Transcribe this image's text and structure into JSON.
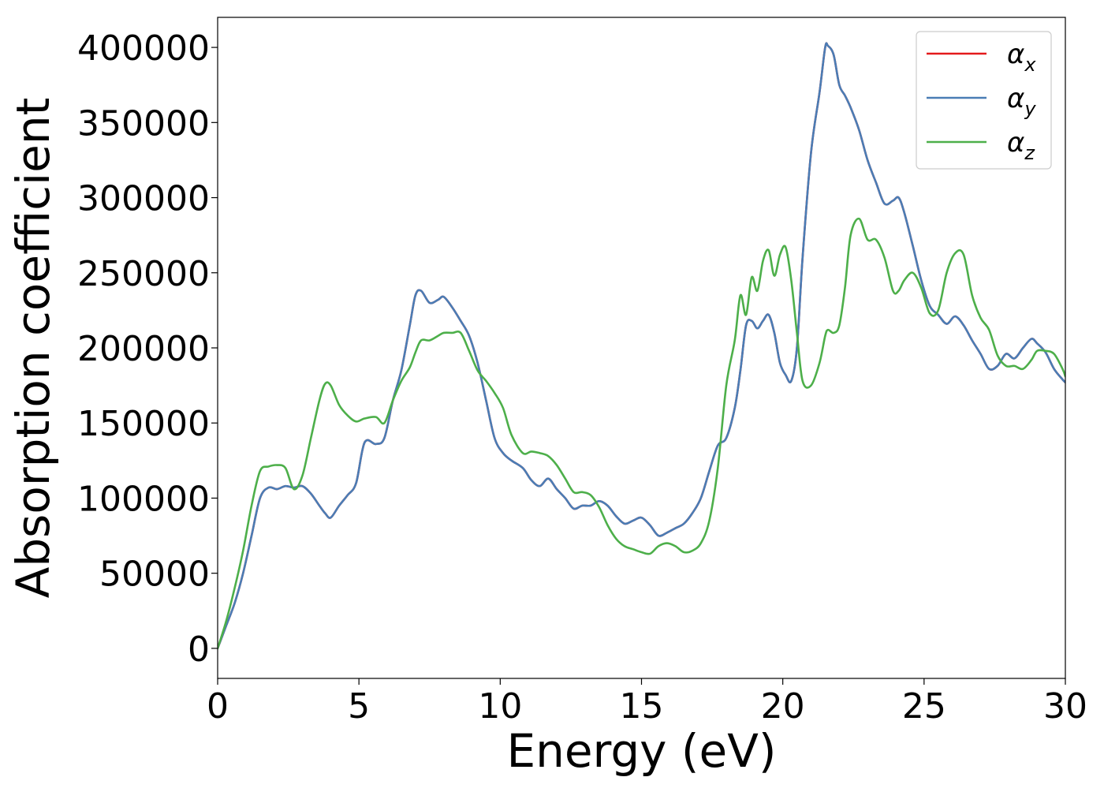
{
  "chart_data": {
    "type": "line",
    "title": "",
    "xlabel": "Energy (eV)",
    "ylabel": "Absorption coefficient",
    "xlim": [
      0,
      30
    ],
    "ylim": [
      -20000,
      420000
    ],
    "xticks": [
      0,
      5,
      10,
      15,
      20,
      25,
      30
    ],
    "yticks": [
      0,
      50000,
      100000,
      150000,
      200000,
      250000,
      300000,
      350000,
      400000
    ],
    "grid": false,
    "legend_position": "top-right",
    "series": [
      {
        "name": "αx",
        "name_base": "α",
        "name_sub": "x",
        "color": "#e41a1c",
        "x": [
          0,
          0.3,
          0.6,
          0.9,
          1.2,
          1.5,
          1.8,
          2.1,
          2.4,
          2.7,
          3.0,
          3.3,
          3.6,
          3.8,
          4.0,
          4.3,
          4.6,
          4.9,
          5.2,
          5.6,
          5.9,
          6.2,
          6.5,
          6.8,
          7.0,
          7.2,
          7.5,
          7.8,
          8.0,
          8.3,
          8.6,
          8.9,
          9.2,
          9.5,
          9.8,
          10.1,
          10.4,
          10.8,
          11.1,
          11.4,
          11.7,
          12.0,
          12.3,
          12.6,
          12.9,
          13.2,
          13.5,
          13.8,
          14.1,
          14.4,
          14.7,
          15.0,
          15.3,
          15.6,
          15.9,
          16.2,
          16.5,
          16.8,
          17.1,
          17.4,
          17.7,
          18.0,
          18.3,
          18.5,
          18.7,
          18.9,
          19.1,
          19.3,
          19.5,
          19.7,
          19.9,
          20.1,
          20.3,
          20.5,
          20.7,
          21.0,
          21.3,
          21.5,
          21.6,
          21.8,
          22.0,
          22.2,
          22.4,
          22.7,
          23.0,
          23.3,
          23.6,
          23.9,
          24.1,
          24.3,
          24.6,
          24.9,
          25.2,
          25.5,
          25.8,
          26.1,
          26.4,
          26.7,
          27.0,
          27.3,
          27.6,
          27.9,
          28.2,
          28.5,
          28.8,
          29.0,
          29.3,
          29.6,
          29.9,
          30.0
        ],
        "y": [
          0,
          15000,
          30000,
          50000,
          75000,
          100000,
          107000,
          106000,
          108000,
          107000,
          108000,
          103000,
          95000,
          90000,
          87000,
          95000,
          102000,
          110000,
          137000,
          136000,
          140000,
          165000,
          185000,
          215000,
          235000,
          238000,
          230000,
          232000,
          234000,
          227000,
          218000,
          208000,
          190000,
          165000,
          140000,
          130000,
          125000,
          120000,
          112000,
          108000,
          113000,
          106000,
          100000,
          93000,
          95000,
          95000,
          98000,
          95000,
          88000,
          83000,
          85000,
          87000,
          82000,
          75000,
          77000,
          80000,
          83000,
          90000,
          100000,
          118000,
          135000,
          140000,
          160000,
          185000,
          215000,
          218000,
          213000,
          218000,
          222000,
          210000,
          190000,
          182000,
          178000,
          200000,
          260000,
          330000,
          370000,
          400000,
          401000,
          395000,
          375000,
          368000,
          360000,
          345000,
          325000,
          310000,
          296000,
          298000,
          300000,
          290000,
          268000,
          245000,
          228000,
          222000,
          216000,
          221000,
          215000,
          205000,
          196000,
          186000,
          188000,
          196000,
          193000,
          200000,
          206000,
          203000,
          197000,
          186000,
          179000,
          177000
        ]
      },
      {
        "name": "αy",
        "name_base": "α",
        "name_sub": "y",
        "color": "#4a7db5",
        "x": [
          0,
          0.3,
          0.6,
          0.9,
          1.2,
          1.5,
          1.8,
          2.1,
          2.4,
          2.7,
          3.0,
          3.3,
          3.6,
          3.8,
          4.0,
          4.3,
          4.6,
          4.9,
          5.2,
          5.6,
          5.9,
          6.2,
          6.5,
          6.8,
          7.0,
          7.2,
          7.5,
          7.8,
          8.0,
          8.3,
          8.6,
          8.9,
          9.2,
          9.5,
          9.8,
          10.1,
          10.4,
          10.8,
          11.1,
          11.4,
          11.7,
          12.0,
          12.3,
          12.6,
          12.9,
          13.2,
          13.5,
          13.8,
          14.1,
          14.4,
          14.7,
          15.0,
          15.3,
          15.6,
          15.9,
          16.2,
          16.5,
          16.8,
          17.1,
          17.4,
          17.7,
          18.0,
          18.3,
          18.5,
          18.7,
          18.9,
          19.1,
          19.3,
          19.5,
          19.7,
          19.9,
          20.1,
          20.3,
          20.5,
          20.7,
          21.0,
          21.3,
          21.5,
          21.6,
          21.8,
          22.0,
          22.2,
          22.4,
          22.7,
          23.0,
          23.3,
          23.6,
          23.9,
          24.1,
          24.3,
          24.6,
          24.9,
          25.2,
          25.5,
          25.8,
          26.1,
          26.4,
          26.7,
          27.0,
          27.3,
          27.6,
          27.9,
          28.2,
          28.5,
          28.8,
          29.0,
          29.3,
          29.6,
          29.9,
          30.0
        ],
        "y": [
          0,
          15000,
          30000,
          50000,
          75000,
          100000,
          107000,
          106000,
          108000,
          107000,
          108000,
          103000,
          95000,
          90000,
          87000,
          95000,
          102000,
          110000,
          137000,
          136000,
          140000,
          165000,
          185000,
          215000,
          235000,
          238000,
          230000,
          232000,
          234000,
          227000,
          218000,
          208000,
          190000,
          165000,
          140000,
          130000,
          125000,
          120000,
          112000,
          108000,
          113000,
          106000,
          100000,
          93000,
          95000,
          95000,
          98000,
          95000,
          88000,
          83000,
          85000,
          87000,
          82000,
          75000,
          77000,
          80000,
          83000,
          90000,
          100000,
          118000,
          135000,
          140000,
          160000,
          185000,
          215000,
          218000,
          213000,
          218000,
          222000,
          210000,
          190000,
          182000,
          178000,
          200000,
          260000,
          330000,
          370000,
          400000,
          401000,
          395000,
          375000,
          368000,
          360000,
          345000,
          325000,
          310000,
          296000,
          298000,
          300000,
          290000,
          268000,
          245000,
          228000,
          222000,
          216000,
          221000,
          215000,
          205000,
          196000,
          186000,
          188000,
          196000,
          193000,
          200000,
          206000,
          203000,
          197000,
          186000,
          179000,
          177000
        ]
      },
      {
        "name": "αz",
        "name_base": "α",
        "name_sub": "z",
        "color": "#4daf4a",
        "x": [
          0,
          0.3,
          0.6,
          0.9,
          1.2,
          1.5,
          1.8,
          2.1,
          2.4,
          2.7,
          3.0,
          3.3,
          3.6,
          3.8,
          4.0,
          4.3,
          4.6,
          4.9,
          5.2,
          5.6,
          5.9,
          6.2,
          6.5,
          6.8,
          7.0,
          7.2,
          7.5,
          7.8,
          8.0,
          8.3,
          8.6,
          8.9,
          9.2,
          9.5,
          9.8,
          10.1,
          10.4,
          10.8,
          11.1,
          11.4,
          11.7,
          12.0,
          12.3,
          12.6,
          12.9,
          13.2,
          13.5,
          13.8,
          14.1,
          14.4,
          14.7,
          15.0,
          15.3,
          15.6,
          15.9,
          16.2,
          16.5,
          16.8,
          17.1,
          17.4,
          17.7,
          18.0,
          18.3,
          18.5,
          18.7,
          18.9,
          19.1,
          19.3,
          19.5,
          19.7,
          19.9,
          20.1,
          20.3,
          20.5,
          20.7,
          21.0,
          21.3,
          21.5,
          21.6,
          21.8,
          22.0,
          22.2,
          22.4,
          22.7,
          23.0,
          23.3,
          23.6,
          23.9,
          24.1,
          24.3,
          24.6,
          24.9,
          25.2,
          25.5,
          25.8,
          26.1,
          26.4,
          26.7,
          27.0,
          27.3,
          27.6,
          27.9,
          28.2,
          28.5,
          28.8,
          29.0,
          29.3,
          29.6,
          29.9,
          30.0
        ],
        "y": [
          0,
          18000,
          40000,
          65000,
          95000,
          118000,
          121000,
          122000,
          120000,
          106000,
          115000,
          140000,
          165000,
          176000,
          175000,
          162000,
          155000,
          151000,
          153000,
          154000,
          150000,
          165000,
          178000,
          187000,
          197000,
          205000,
          205000,
          208000,
          210000,
          210000,
          210000,
          198000,
          185000,
          178000,
          170000,
          160000,
          142000,
          130000,
          131000,
          130000,
          128000,
          122000,
          113000,
          104000,
          104000,
          102000,
          94000,
          82000,
          73000,
          68000,
          66000,
          64000,
          63000,
          68000,
          70000,
          68000,
          64000,
          65000,
          70000,
          85000,
          120000,
          175000,
          205000,
          235000,
          222000,
          247000,
          238000,
          258000,
          265000,
          248000,
          262000,
          267000,
          245000,
          210000,
          178000,
          175000,
          190000,
          208000,
          212000,
          210000,
          215000,
          240000,
          275000,
          286000,
          272000,
          272000,
          260000,
          238000,
          238000,
          245000,
          250000,
          240000,
          223000,
          225000,
          250000,
          263000,
          262000,
          235000,
          220000,
          212000,
          195000,
          188000,
          188000,
          186000,
          192000,
          198000,
          198000,
          196000,
          186000,
          181000
        ]
      }
    ]
  }
}
